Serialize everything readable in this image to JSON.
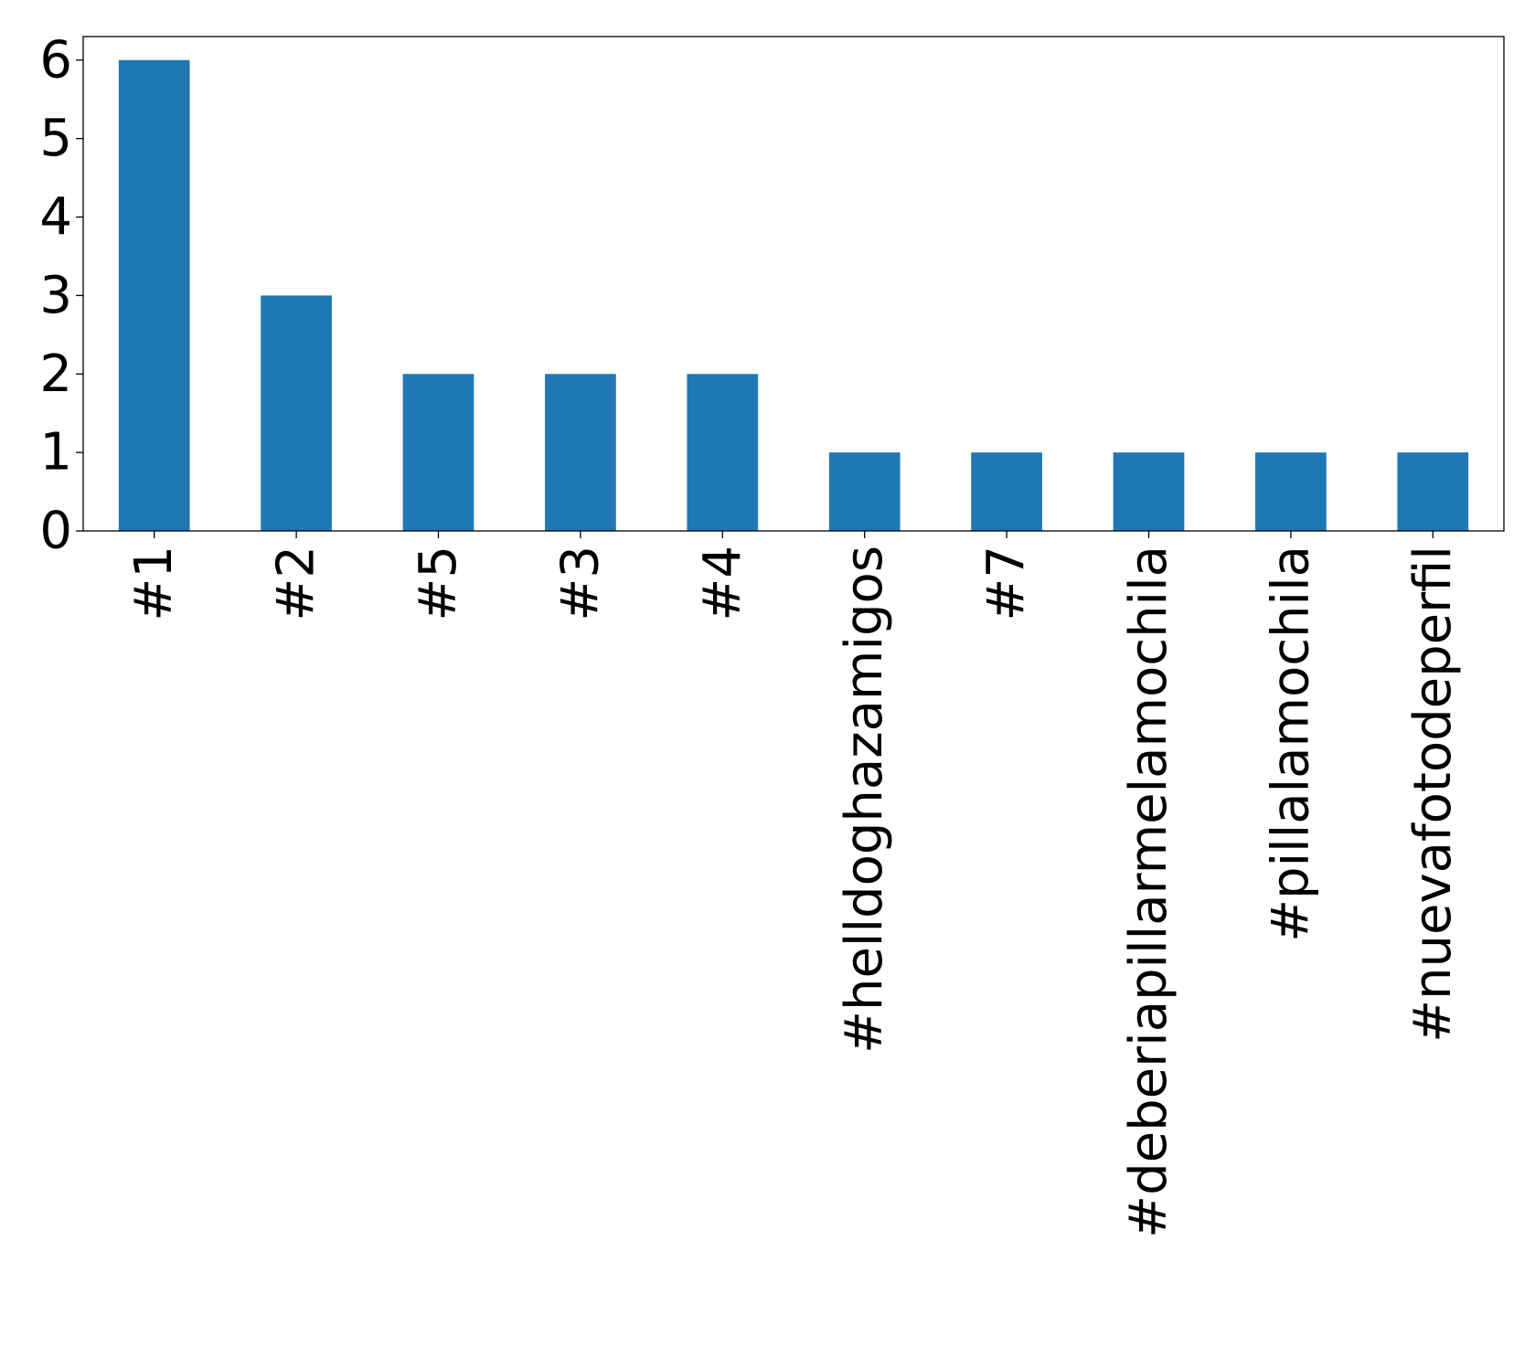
{
  "chart_data": {
    "type": "bar",
    "title": "",
    "xlabel": "",
    "ylabel": "",
    "categories": [
      "#1",
      "#2",
      "#5",
      "#3",
      "#4",
      "#helldoghazamigos",
      "#7",
      "#deberiapillarmelamochila",
      "#pillalamochila",
      "#nuevafotodeperfil"
    ],
    "values": [
      6,
      3,
      2,
      2,
      2,
      1,
      1,
      1,
      1,
      1
    ],
    "ylim": [
      0,
      6.3
    ],
    "yticks": [
      0,
      1,
      2,
      3,
      4,
      5,
      6
    ],
    "bar_color": "#1f77b4",
    "grid": false,
    "legend": "none"
  }
}
